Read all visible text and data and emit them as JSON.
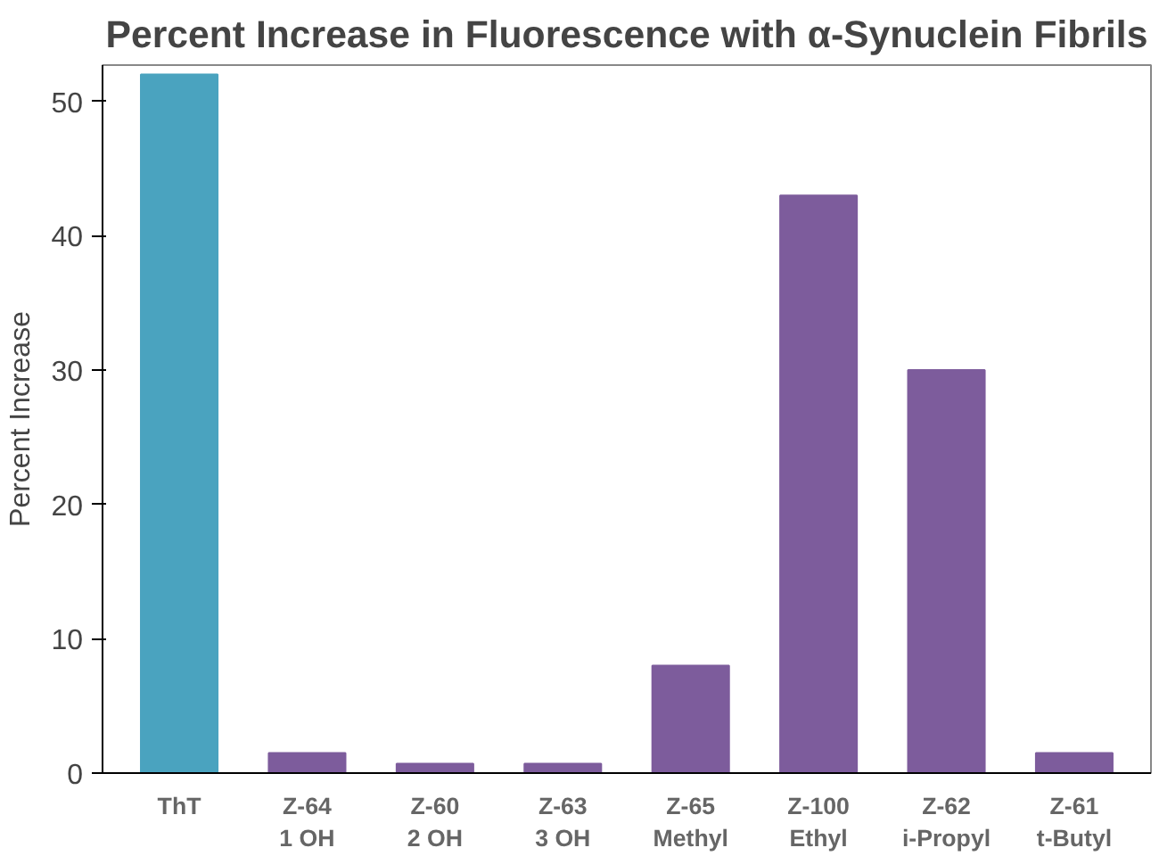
{
  "chart_data": {
    "type": "bar",
    "title": "Percent Increase in Fluorescence with α-Synuclein Fibrils",
    "ylabel": "Percent Increase",
    "categories": [
      "ThT",
      "Z-64\n1 OH",
      "Z-60\n2 OH",
      "Z-63\n3 OH",
      "Z-65\nMethyl",
      "Z-100\nEthyl",
      "Z-62\ni-Propyl",
      "Z-61\nt-Butyl"
    ],
    "values": [
      52,
      1.5,
      0.7,
      0.7,
      8,
      43,
      30,
      1.5
    ],
    "colors": [
      "#4aa3bf",
      "#7d5c9c",
      "#7d5c9c",
      "#7d5c9c",
      "#7d5c9c",
      "#7d5c9c",
      "#7d5c9c",
      "#7d5c9c"
    ],
    "ylim": [
      0,
      52.7
    ],
    "yticks": [
      0,
      10,
      20,
      30,
      40,
      50
    ],
    "grid": false
  }
}
